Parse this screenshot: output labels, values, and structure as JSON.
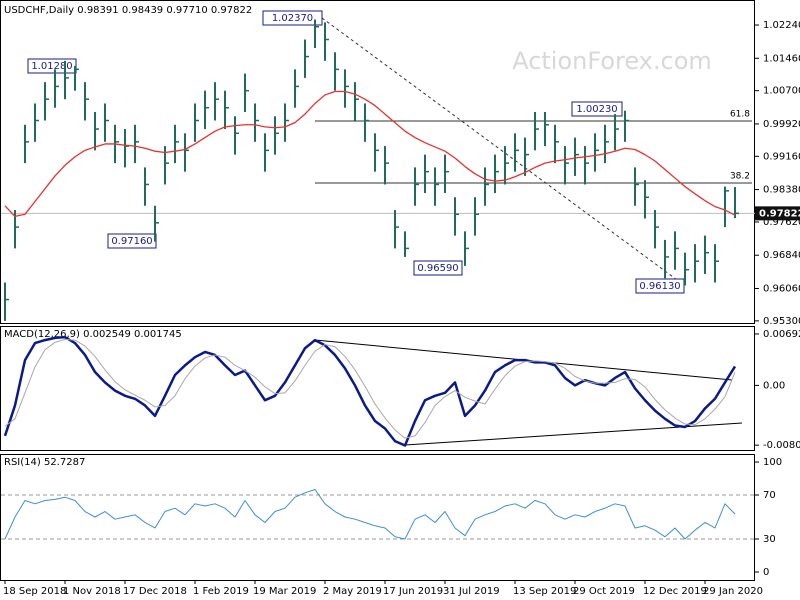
{
  "chart_data": [
    {
      "type": "ohlc",
      "title": "USDCHF,Daily  0.98391 0.98439 0.97710 0.97822",
      "watermark": "ActionForex.com",
      "color": "#1f6b5c",
      "categories": [
        "18 Sep 2018",
        null,
        null,
        null,
        null,
        null,
        "1 Nov 2018",
        null,
        null,
        null,
        null,
        null,
        "17 Dec 2018",
        null,
        null,
        null,
        null,
        null,
        null,
        "1 Feb 2019",
        null,
        null,
        null,
        null,
        null,
        "19 Mar 2019",
        null,
        null,
        null,
        null,
        null,
        null,
        "2 May 2019",
        null,
        null,
        null,
        null,
        null,
        "17 Jun 2019",
        null,
        null,
        null,
        null,
        null,
        "31 Jul 2019",
        null,
        null,
        null,
        null,
        null,
        null,
        "13 Sep 2019",
        null,
        null,
        null,
        null,
        null,
        "29 Oct 2019",
        null,
        null,
        null,
        null,
        null,
        null,
        "12 Dec 2019",
        null,
        null,
        null,
        null,
        null,
        "29 Jan 2020",
        null,
        null,
        null
      ],
      "high": [
        0.962,
        0.979,
        0.999,
        1.004,
        1.009,
        1.012,
        1.014,
        1.0128,
        1.009,
        1.002,
        1.004,
        0.999,
        0.998,
        0.999,
        0.989,
        0.98,
        0.994,
        0.999,
        0.997,
        1.004,
        1.007,
        1.009,
        1.007,
        1.001,
        1.011,
        1.004,
        0.997,
        1.001,
        1.004,
        1.012,
        1.019,
        1.0237,
        1.023,
        1.016,
        1.012,
        1.009,
        1.004,
        0.997,
        0.994,
        0.979,
        0.974,
        0.989,
        0.992,
        0.989,
        0.992,
        0.982,
        0.974,
        0.982,
        0.989,
        0.992,
        0.994,
        0.997,
        0.996,
        1.002,
        1.002,
        0.999,
        0.994,
        0.996,
        0.994,
        0.997,
        0.999,
        1.0015,
        1.0023,
        0.989,
        0.986,
        0.979,
        0.972,
        0.974,
        0.969,
        0.971,
        0.973,
        0.971,
        0.9845,
        0.98439
      ],
      "low": [
        0.953,
        0.97,
        0.99,
        0.995,
        1.0,
        1.003,
        1.005,
        1.007,
        1.0,
        0.993,
        0.995,
        0.99,
        0.989,
        0.99,
        0.98,
        0.9716,
        0.985,
        0.99,
        0.988,
        0.995,
        0.998,
        1.0,
        0.998,
        0.992,
        1.002,
        0.995,
        0.988,
        0.992,
        0.995,
        1.003,
        1.01,
        1.017,
        1.014,
        1.007,
        1.003,
        1.0,
        0.995,
        0.988,
        0.985,
        0.97,
        0.968,
        0.98,
        0.983,
        0.98,
        0.983,
        0.973,
        0.9659,
        0.973,
        0.98,
        0.983,
        0.985,
        0.988,
        0.987,
        0.993,
        0.994,
        0.99,
        0.985,
        0.987,
        0.985,
        0.988,
        0.99,
        0.993,
        0.995,
        0.98,
        0.977,
        0.97,
        0.963,
        0.965,
        0.9613,
        0.962,
        0.964,
        0.962,
        0.975,
        0.9771
      ],
      "close": [
        0.958,
        0.975,
        0.995,
        1.0,
        1.005,
        1.008,
        1.01,
        1.012,
        1.005,
        0.998,
        1.0,
        0.995,
        0.994,
        0.995,
        0.985,
        0.976,
        0.99,
        0.995,
        0.993,
        1.0,
        1.003,
        1.005,
        1.003,
        0.997,
        1.007,
        1.0,
        0.993,
        0.997,
        1.0,
        1.008,
        1.015,
        1.022,
        1.019,
        1.012,
        1.008,
        1.005,
        1.0,
        0.993,
        0.99,
        0.975,
        0.97,
        0.985,
        0.988,
        0.985,
        0.988,
        0.978,
        0.97,
        0.978,
        0.985,
        0.988,
        0.99,
        0.993,
        0.992,
        0.998,
        0.999,
        0.995,
        0.99,
        0.992,
        0.99,
        0.993,
        0.995,
        0.998,
        1.0,
        0.985,
        0.982,
        0.975,
        0.968,
        0.97,
        0.965,
        0.967,
        0.969,
        0.967,
        0.9835,
        0.97822
      ],
      "overlays": [
        {
          "color": "#e8312f",
          "values": [
            0.98,
            0.9775,
            0.978,
            0.981,
            0.984,
            0.987,
            0.9895,
            0.9915,
            0.993,
            0.9938,
            0.9945,
            0.9945,
            0.9942,
            0.994,
            0.9935,
            0.9928,
            0.9925,
            0.9928,
            0.9932,
            0.9945,
            0.996,
            0.9975,
            0.9985,
            0.9988,
            0.999,
            0.999,
            0.9985,
            0.9983,
            0.9985,
            0.9995,
            1.0015,
            1.004,
            1.006,
            1.0068,
            1.0068,
            1.0062,
            1.005,
            1.0035,
            1.0015,
            0.9995,
            0.9975,
            0.996,
            0.9948,
            0.9938,
            0.9928,
            0.9912,
            0.9892,
            0.9875,
            0.9862,
            0.9858,
            0.986,
            0.9868,
            0.9878,
            0.989,
            0.99,
            0.9905,
            0.9908,
            0.9912,
            0.9915,
            0.9918,
            0.9922,
            0.9928,
            0.9935,
            0.9932,
            0.992,
            0.9905,
            0.9885,
            0.9865,
            0.9845,
            0.9828,
            0.9812,
            0.9798,
            0.979,
            0.9778
          ]
        }
      ],
      "ylim": [
        0.9525,
        1.0278
      ],
      "yticks": [
        {
          "value": 1.0224,
          "label": "1.02240"
        },
        {
          "value": 1.0146,
          "label": "1.01460"
        },
        {
          "value": 1.007,
          "label": "1.00700"
        },
        {
          "value": 0.9992,
          "label": "0.99920"
        },
        {
          "value": 0.9916,
          "label": "0.99160"
        },
        {
          "value": 0.9838,
          "label": "0.98380"
        },
        {
          "value": 0.9762,
          "label": "0.97620"
        },
        {
          "value": 0.9684,
          "label": "0.96840"
        },
        {
          "value": 0.9606,
          "label": "0.96060"
        },
        {
          "value": 0.953,
          "label": "0.95300"
        }
      ],
      "last_label": "0.97822",
      "price_labels": [
        "1.02370",
        "1.01280",
        "0.97160",
        "0.96590",
        "1.00230",
        "0.96130"
      ],
      "fib_levels": [
        61.8,
        38.2
      ]
    },
    {
      "type": "line",
      "title": "MACD(12,26,9) 0.002549 0.001745",
      "series": [
        {
          "color": "#0b1a8a",
          "values": [
            -0.0068,
            -0.0027,
            0.0034,
            0.0057,
            0.0061,
            0.0064,
            0.0065,
            0.0057,
            0.0041,
            0.0018,
            0.0004,
            -0.0007,
            -0.0014,
            -0.0018,
            -0.0027,
            -0.0041,
            -0.0014,
            0.0014,
            0.0027,
            0.0038,
            0.0045,
            0.0041,
            0.0027,
            0.0014,
            0.002,
            0.0,
            -0.002,
            -0.0014,
            0.0004,
            0.0027,
            0.005,
            0.0061,
            0.0054,
            0.0041,
            0.0023,
            0.0,
            -0.0027,
            -0.0048,
            -0.0058,
            -0.0075,
            -0.0081,
            -0.0048,
            -0.002,
            -0.0014,
            -0.001,
            0.0004,
            -0.0041,
            -0.0027,
            -0.0007,
            0.0018,
            0.0027,
            0.0034,
            0.0034,
            0.0031,
            0.0031,
            0.0027,
            0.001,
            0.0,
            0.0007,
            0.0003,
            0.0,
            0.001,
            0.0018,
            -0.0004,
            -0.002,
            -0.0034,
            -0.0045,
            -0.0054,
            -0.0056,
            -0.0048,
            -0.0031,
            -0.0018,
            0.0004,
            0.002549
          ]
        },
        {
          "color": "#a8a8a8",
          "values": [
            -0.0055,
            -0.0045,
            -0.001,
            0.0025,
            0.0048,
            0.0058,
            0.0062,
            0.0061,
            0.0053,
            0.0039,
            0.0021,
            0.0005,
            -0.0006,
            -0.0013,
            -0.002,
            -0.0029,
            -0.0027,
            -0.0014,
            0.0009,
            0.0026,
            0.0037,
            0.0041,
            0.0038,
            0.0027,
            0.002,
            0.0011,
            -0.0002,
            -0.0011,
            -0.001,
            0.0006,
            0.0027,
            0.0046,
            0.0055,
            0.0052,
            0.0039,
            0.0021,
            -0.0001,
            -0.0025,
            -0.0044,
            -0.006,
            -0.0071,
            -0.0068,
            -0.005,
            -0.0027,
            -0.0015,
            -0.0007,
            -0.0016,
            -0.0021,
            -0.0025,
            -0.0005,
            0.0013,
            0.0026,
            0.0032,
            0.0033,
            0.0032,
            0.003,
            0.0023,
            0.0012,
            0.0006,
            0.0003,
            0.0003,
            0.0004,
            0.0009,
            0.0008,
            -0.0002,
            -0.0019,
            -0.0033,
            -0.0044,
            -0.0052,
            -0.0053,
            -0.0045,
            -0.0032,
            -0.0015,
            0.001745
          ]
        }
      ],
      "ylim": [
        -0.0087,
        0.008
      ],
      "yticks": [
        0.006927,
        {
          "value": 0,
          "label": "0.00"
        },
        -0.008049
      ]
    },
    {
      "type": "line",
      "title": "RSI(14) 52.7287",
      "series": [
        {
          "color": "#3d8fd6",
          "values": [
            30,
            50,
            65,
            62,
            65,
            66,
            68,
            65,
            55,
            50,
            55,
            48,
            50,
            52,
            45,
            40,
            55,
            58,
            52,
            62,
            60,
            62,
            58,
            50,
            65,
            52,
            45,
            55,
            58,
            68,
            72,
            75,
            62,
            55,
            50,
            48,
            45,
            42,
            40,
            32,
            30,
            48,
            52,
            45,
            55,
            40,
            33,
            48,
            52,
            55,
            60,
            62,
            58,
            65,
            62,
            52,
            48,
            52,
            50,
            55,
            58,
            62,
            60,
            40,
            42,
            38,
            32,
            40,
            30,
            38,
            45,
            40,
            62,
            52.7287
          ]
        }
      ],
      "ylim": [
        -7.3,
        107.3
      ],
      "yticks": [
        100,
        70,
        30,
        0
      ],
      "grid": "dashed"
    }
  ]
}
